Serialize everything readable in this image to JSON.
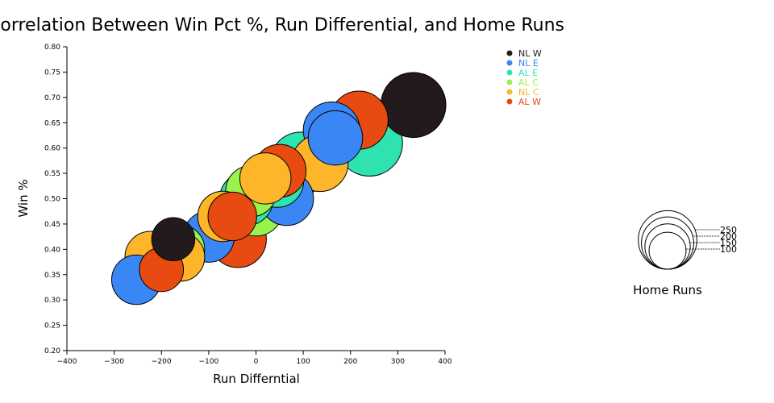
{
  "chart_data": {
    "type": "scatter",
    "title": "Correlation Between Win Pct %, Run Differential, and Home Runs",
    "xlabel": "Run Differntial",
    "ylabel": "Win %",
    "xlim": [
      -400,
      400
    ],
    "ylim": [
      0.2,
      0.8
    ],
    "xticks": [
      -400,
      -300,
      -200,
      -100,
      0,
      100,
      200,
      300,
      400
    ],
    "yticks": [
      0.2,
      0.25,
      0.3,
      0.35,
      0.4,
      0.45,
      0.5,
      0.55,
      0.6,
      0.65,
      0.7,
      0.75,
      0.8
    ],
    "ytick_format": "0.00",
    "grid": false,
    "legend_position": "top-right",
    "size_legend": {
      "title": "Home Runs",
      "values": [
        250,
        200,
        150,
        100
      ]
    },
    "series": [
      {
        "name": "NL W",
        "color": "#231a1e",
        "points": [
          {
            "x": 333,
            "y": 0.685,
            "hr": 250
          },
          {
            "x": -175,
            "y": 0.42,
            "hr": 110
          },
          {
            "x": 10,
            "y": 0.5,
            "hr": 205
          }
        ]
      },
      {
        "name": "NL E",
        "color": "#3a86f5",
        "points": [
          {
            "x": -253,
            "y": 0.34,
            "hr": 145
          },
          {
            "x": -100,
            "y": 0.425,
            "hr": 155
          },
          {
            "x": 160,
            "y": 0.635,
            "hr": 190
          },
          {
            "x": 168,
            "y": 0.62,
            "hr": 175
          },
          {
            "x": 65,
            "y": 0.5,
            "hr": 170
          }
        ]
      },
      {
        "name": "AL E",
        "color": "#2ee3b0",
        "points": [
          {
            "x": 240,
            "y": 0.61,
            "hr": 260
          },
          {
            "x": 95,
            "y": 0.57,
            "hr": 230
          },
          {
            "x": 45,
            "y": 0.535,
            "hr": 165
          },
          {
            "x": -20,
            "y": 0.5,
            "hr": 170
          }
        ]
      },
      {
        "name": "AL C",
        "color": "#98f34e",
        "points": [
          {
            "x": -160,
            "y": 0.4,
            "hr": 140
          },
          {
            "x": 0,
            "y": 0.48,
            "hr": 175
          },
          {
            "x": -10,
            "y": 0.515,
            "hr": 155
          }
        ]
      },
      {
        "name": "NL C",
        "color": "#fdb52a",
        "points": [
          {
            "x": -223,
            "y": 0.385,
            "hr": 155
          },
          {
            "x": -160,
            "y": 0.385,
            "hr": 140
          },
          {
            "x": -70,
            "y": 0.465,
            "hr": 150
          },
          {
            "x": 20,
            "y": 0.54,
            "hr": 155
          },
          {
            "x": 135,
            "y": 0.57,
            "hr": 190
          }
        ]
      },
      {
        "name": "AL W",
        "color": "#e84b11",
        "points": [
          {
            "x": 218,
            "y": 0.655,
            "hr": 200
          },
          {
            "x": -200,
            "y": 0.36,
            "hr": 115
          },
          {
            "x": -50,
            "y": 0.465,
            "hr": 140
          },
          {
            "x": 50,
            "y": 0.555,
            "hr": 165
          },
          {
            "x": -38,
            "y": 0.42,
            "hr": 190
          }
        ]
      }
    ]
  }
}
